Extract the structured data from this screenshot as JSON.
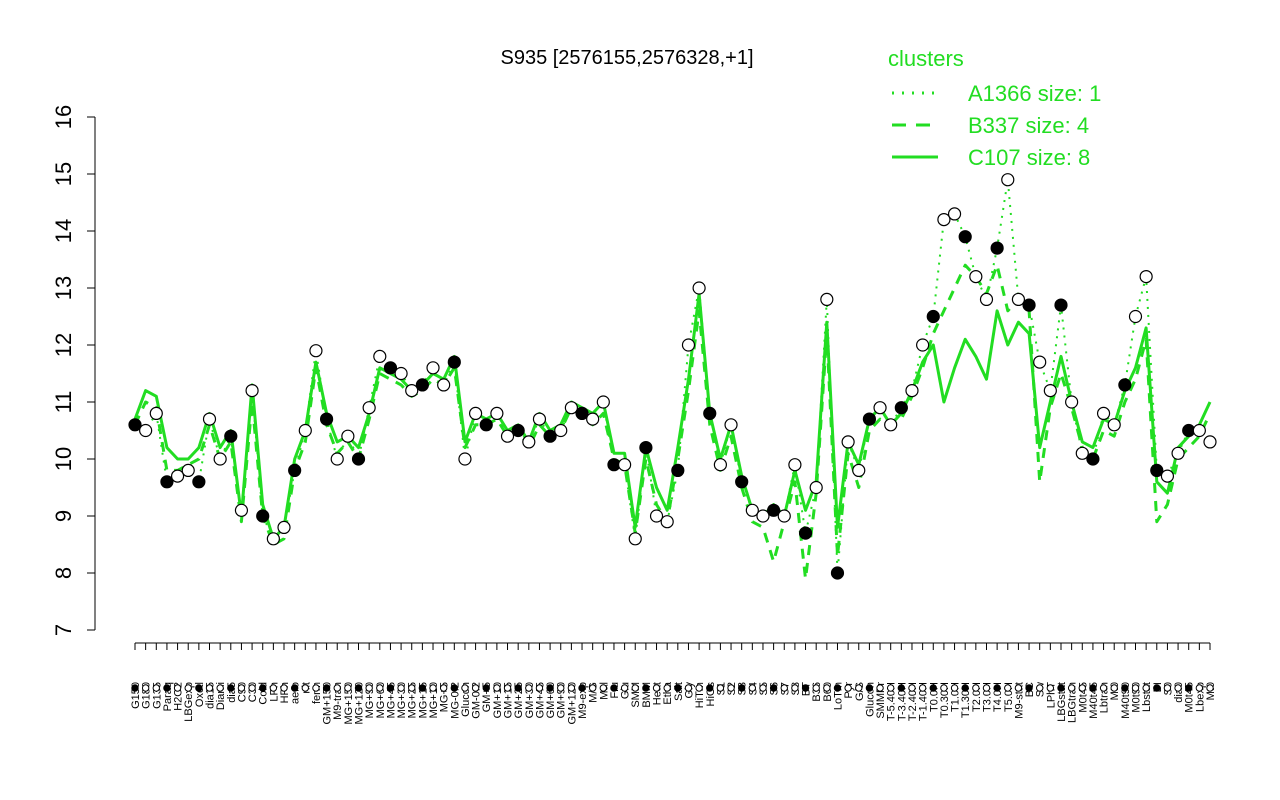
{
  "chart_data": {
    "type": "line",
    "title": "S935 [2576155,2576328,+1]",
    "xlabel": "",
    "ylabel": "",
    "ylim": [
      7,
      16
    ],
    "yticks": [
      7,
      8,
      9,
      10,
      11,
      12,
      13,
      14,
      15,
      16
    ],
    "grid": false,
    "legend": {
      "title": "clusters",
      "position": "top-right",
      "color": "#22dd22",
      "entries": [
        {
          "label": "A1366 size: 1",
          "style": "dotted"
        },
        {
          "label": "B337 size: 4",
          "style": "dashed"
        },
        {
          "label": "C107 size: 8",
          "style": "solid"
        }
      ]
    },
    "x_tick_labels": [
      "G150",
      "G180",
      "G135",
      "Paraq",
      "H2O2",
      "LBGexp",
      "Oxctl",
      "dia15",
      "Diami",
      "dia5",
      "C90",
      "C30",
      "Cold",
      "LPh",
      "HPh",
      "aero",
      "nit",
      "ferm",
      "GM+150",
      "M9-tran",
      "MG+150",
      "MG+120",
      "MG+90",
      "MG+60",
      "MG+45",
      "MG+30",
      "MG+25",
      "MG+15",
      "MG+10",
      "MG+5",
      "MG-0.2",
      "Glucon",
      "GM-0.2",
      "GM+5",
      "GM+10",
      "GM+15",
      "GM+25",
      "GM+30",
      "GM+45",
      "GM+60",
      "GM+90",
      "GM+120",
      "M9-exp",
      "M/G",
      "Mal",
      "Fru",
      "Glu",
      "SMM",
      "BMM",
      "Heat",
      "Etha",
      "Salt",
      "Gly",
      "HiTm",
      "HiOs",
      "S1",
      "S2",
      "S3",
      "S4",
      "S5",
      "S6",
      "S7",
      "S8",
      "BT",
      "B36",
      "B60",
      "LoTm",
      "Pyr",
      "G/S",
      "Glucon",
      "SMMPr",
      "T-5.40H",
      "T-3.40H",
      "T-2.40H",
      "T-1.40H",
      "T0.0H",
      "T0.30H",
      "T1.0H",
      "T1.30H",
      "T2.0H",
      "T3.0H",
      "T4.0H",
      "T5.0H",
      "M9-stat",
      "BC",
      "Sw",
      "LPhT",
      "LBGstat",
      "LBGtran",
      "M0t45",
      "M40t45",
      "Lbtran",
      "Mt0",
      "M40t90",
      "M0t90",
      "Lbstat",
      "BI",
      "S0",
      "dia0",
      "M0t45",
      "Lbexp",
      "Mt0"
    ],
    "series": [
      {
        "style": "solid",
        "values": [
          10.7,
          11.2,
          11.1,
          10.2,
          10.0,
          10.0,
          10.2,
          10.8,
          10.2,
          10.5,
          9.0,
          11.3,
          9.2,
          8.6,
          8.8,
          10.0,
          10.5,
          11.7,
          10.8,
          10.3,
          10.4,
          10.2,
          10.8,
          11.6,
          11.5,
          11.4,
          11.2,
          11.3,
          11.5,
          11.4,
          11.8,
          10.3,
          10.8,
          10.7,
          10.8,
          10.5,
          10.6,
          10.3,
          10.8,
          10.5,
          10.6,
          11.0,
          10.9,
          10.8,
          11.0,
          10.1,
          10.1,
          8.8,
          10.2,
          9.5,
          9.1,
          10.2,
          11.4,
          12.9,
          10.8,
          10.0,
          10.6,
          9.7,
          9.1,
          9.0,
          9.2,
          9.0,
          9.8,
          9.1,
          9.6,
          12.4,
          8.8,
          10.3,
          9.9,
          10.7,
          10.9,
          10.6,
          10.8,
          11.2,
          11.7,
          12.0,
          11.0,
          11.6,
          12.1,
          11.8,
          11.4,
          12.6,
          12.0,
          12.4,
          12.2,
          10.2,
          11.0,
          11.8,
          11.0,
          10.3,
          10.2,
          10.7,
          10.6,
          11.2,
          11.6,
          12.3,
          9.6,
          9.4,
          10.2,
          10.4,
          10.6,
          11.0
        ]
      },
      {
        "style": "dashed",
        "values": [
          10.6,
          11.0,
          10.9,
          9.8,
          9.8,
          9.9,
          10.0,
          10.6,
          10.0,
          10.3,
          8.9,
          11.0,
          9.0,
          8.5,
          8.6,
          9.8,
          10.3,
          11.6,
          10.6,
          10.1,
          10.3,
          10.0,
          10.7,
          11.5,
          11.4,
          11.3,
          11.1,
          11.2,
          11.4,
          11.3,
          11.6,
          10.2,
          10.6,
          10.6,
          10.7,
          10.4,
          10.5,
          10.2,
          10.6,
          10.4,
          10.5,
          10.9,
          10.8,
          10.6,
          10.8,
          10.0,
          9.9,
          8.7,
          10.0,
          9.2,
          8.9,
          10.0,
          11.2,
          12.6,
          10.6,
          9.8,
          10.4,
          9.5,
          8.9,
          8.8,
          8.2,
          8.9,
          9.6,
          7.9,
          9.4,
          12.2,
          8.3,
          10.1,
          9.5,
          10.5,
          10.7,
          10.6,
          10.7,
          11.1,
          11.6,
          12.2,
          12.6,
          13.0,
          13.4,
          13.2,
          12.9,
          13.4,
          12.6,
          12.8,
          12.6,
          9.6,
          10.9,
          11.5,
          10.9,
          10.2,
          10.0,
          10.5,
          10.4,
          11.0,
          11.4,
          12.1,
          8.9,
          9.2,
          10.0,
          10.2,
          10.4,
          10.8
        ]
      },
      {
        "style": "dotted",
        "values": [
          10.6,
          10.5,
          10.8,
          9.6,
          9.7,
          9.8,
          9.6,
          10.7,
          10.0,
          10.4,
          9.1,
          11.2,
          9.0,
          8.6,
          8.8,
          9.8,
          10.5,
          11.9,
          10.7,
          10.0,
          10.4,
          10.0,
          10.9,
          11.8,
          11.6,
          11.5,
          11.2,
          11.3,
          11.6,
          11.3,
          11.7,
          10.0,
          10.8,
          10.6,
          10.8,
          10.4,
          10.5,
          10.3,
          10.7,
          10.4,
          10.5,
          10.9,
          10.8,
          10.7,
          11.0,
          9.9,
          9.9,
          8.6,
          10.2,
          9.0,
          8.9,
          9.8,
          12.0,
          13.0,
          10.8,
          9.9,
          10.6,
          9.6,
          9.1,
          9.0,
          9.1,
          9.0,
          9.9,
          8.7,
          9.5,
          12.8,
          8.0,
          10.3,
          9.8,
          10.7,
          10.9,
          10.6,
          10.9,
          11.2,
          12.0,
          12.5,
          14.2,
          14.3,
          13.9,
          13.2,
          12.8,
          13.7,
          14.9,
          12.8,
          12.7,
          11.7,
          11.2,
          12.7,
          11.0,
          10.1,
          10.0,
          10.8,
          10.6,
          11.3,
          12.5,
          13.2,
          9.8,
          9.7,
          10.1,
          10.5,
          10.5,
          10.3
        ]
      }
    ]
  }
}
